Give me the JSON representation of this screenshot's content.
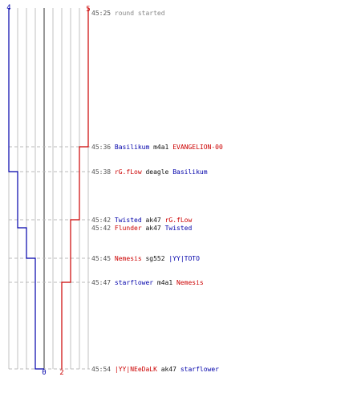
{
  "colors": {
    "blue": "#0000aa",
    "red": "#cc0000",
    "grid": "#c0c0c0",
    "center": "#777777",
    "dash": "#bbbbbb"
  },
  "chart_data": {
    "type": "line",
    "team_blue": {
      "color": "#0000aa",
      "start_label": "4",
      "end_label": "0",
      "steps": [
        {
          "time": "45:38",
          "alive": 3
        },
        {
          "time": "45:42",
          "alive": 2
        },
        {
          "time": "45:45",
          "alive": 1
        },
        {
          "time": "45:54",
          "alive": 0
        }
      ]
    },
    "team_red": {
      "color": "#cc0000",
      "start_label": "5",
      "end_label": "2",
      "steps": [
        {
          "time": "45:36",
          "alive": 4
        },
        {
          "time": "45:42",
          "alive": 3
        },
        {
          "time": "45:47",
          "alive": 2
        }
      ]
    },
    "events": [
      {
        "time": "45:25",
        "note": "round started"
      },
      {
        "time": "45:36",
        "killer": "Basilikum",
        "killer_team": "blue",
        "weapon": "m4a1",
        "victim": "EVANGELION-00",
        "victim_team": "red"
      },
      {
        "time": "45:38",
        "killer": "rG.fLow",
        "killer_team": "red",
        "weapon": "deagle",
        "victim": "Basilikum",
        "victim_team": "blue"
      },
      {
        "time": "45:42",
        "killer": "Twisted",
        "killer_team": "blue",
        "weapon": "ak47",
        "victim": "rG.fLow",
        "victim_team": "red"
      },
      {
        "time": "45:42",
        "killer": "Flunder",
        "killer_team": "red",
        "weapon": "ak47",
        "victim": "Twisted",
        "victim_team": "blue"
      },
      {
        "time": "45:45",
        "killer": "Nemesis",
        "killer_team": "red",
        "weapon": "sg552",
        "victim": "|YY|TOTO",
        "victim_team": "blue"
      },
      {
        "time": "45:47",
        "killer": "starflower",
        "killer_team": "blue",
        "weapon": "m4a1",
        "victim": "Nemesis",
        "victim_team": "red"
      },
      {
        "time": "45:54",
        "killer": "|YY|NEeDaLK",
        "killer_team": "red",
        "weapon": "ak47",
        "victim": "starflower",
        "victim_team": "blue"
      }
    ]
  }
}
